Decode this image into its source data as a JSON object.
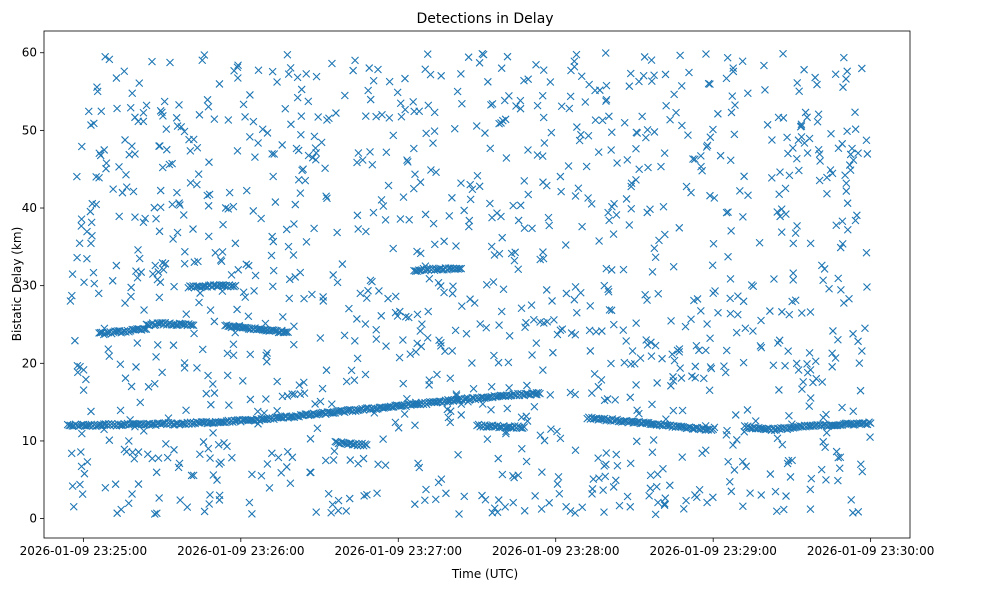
{
  "chart_data": {
    "type": "scatter",
    "title": "Detections in Delay",
    "xlabel": "Time (UTC)",
    "ylabel": "Bistatic Delay (km)",
    "marker": "x",
    "color": "#1f77b4",
    "grid": false,
    "legend": "none",
    "x_unit": "seconds after 2026-01-09 23:25:00 UTC",
    "xlim": [
      -15,
      315
    ],
    "ylim": [
      -2.5,
      62.8
    ],
    "x_ticks": [
      {
        "value": 0,
        "label": "2026-01-09 23:25:00"
      },
      {
        "value": 60,
        "label": "2026-01-09 23:26:00"
      },
      {
        "value": 120,
        "label": "2026-01-09 23:27:00"
      },
      {
        "value": 180,
        "label": "2026-01-09 23:28:00"
      },
      {
        "value": 240,
        "label": "2026-01-09 23:29:00"
      },
      {
        "value": 300,
        "label": "2026-01-09 23:30:00"
      }
    ],
    "y_ticks": [
      {
        "value": 0,
        "label": "0"
      },
      {
        "value": 10,
        "label": "10"
      },
      {
        "value": 20,
        "label": "20"
      },
      {
        "value": 30,
        "label": "30"
      },
      {
        "value": 40,
        "label": "40"
      },
      {
        "value": 50,
        "label": "50"
      },
      {
        "value": 60,
        "label": "60"
      }
    ],
    "series": [
      {
        "values_note": "track and clutter points",
        "tracks": [
          {
            "x": [
              -6,
              0,
              6,
              12,
              18,
              24,
              30,
              36,
              42,
              48,
              54,
              60,
              66,
              72,
              78,
              84,
              90,
              96,
              102,
              108,
              114,
              120,
              126,
              132,
              138,
              144,
              150,
              156,
              162,
              168,
              174
            ],
            "y": [
              12.0,
              12.0,
              12.0,
              12.1,
              12.1,
              12.1,
              12.2,
              12.2,
              12.3,
              12.4,
              12.5,
              12.6,
              12.7,
              12.9,
              13.1,
              13.3,
              13.5,
              13.7,
              13.9,
              14.1,
              14.3,
              14.5,
              14.7,
              14.9,
              15.1,
              15.3,
              15.5,
              15.7,
              15.9,
              16.0,
              16.1
            ]
          },
          {
            "x": [
              6,
              12,
              18,
              24
            ],
            "y": [
              23.8,
              24.0,
              24.2,
              24.4
            ]
          },
          {
            "x": [
              24,
              30,
              36,
              42
            ],
            "y": [
              25.0,
              25.1,
              25.0,
              24.9
            ]
          },
          {
            "x": [
              40,
              46,
              52,
              58
            ],
            "y": [
              29.8,
              29.9,
              30.0,
              30.0
            ]
          },
          {
            "x": [
              54,
              60,
              66,
              72,
              78
            ],
            "y": [
              24.8,
              24.6,
              24.4,
              24.2,
              24.0
            ]
          },
          {
            "x": [
              126,
              132,
              138,
              144
            ],
            "y": [
              32.0,
              32.1,
              32.2,
              32.2
            ]
          },
          {
            "x": [
              192,
              198,
              204,
              210,
              216,
              222,
              228,
              234,
              240
            ],
            "y": [
              13.0,
              12.8,
              12.6,
              12.4,
              12.2,
              12.0,
              11.8,
              11.6,
              11.5
            ]
          },
          {
            "x": [
              252,
              258,
              264,
              270,
              276,
              282,
              288,
              294,
              300
            ],
            "y": [
              11.8,
              11.6,
              11.5,
              11.7,
              11.9,
              12.0,
              12.1,
              12.2,
              12.3
            ]
          },
          {
            "x": [
              96,
              102,
              108
            ],
            "y": [
              9.8,
              9.6,
              9.5
            ]
          },
          {
            "x": [
              150,
              156,
              162,
              168
            ],
            "y": [
              12.0,
              11.9,
              11.8,
              11.8
            ]
          }
        ],
        "clutter": {
          "count": 1200,
          "x_range": [
            -5,
            300
          ],
          "y_range": [
            0.5,
            60
          ]
        }
      }
    ]
  }
}
